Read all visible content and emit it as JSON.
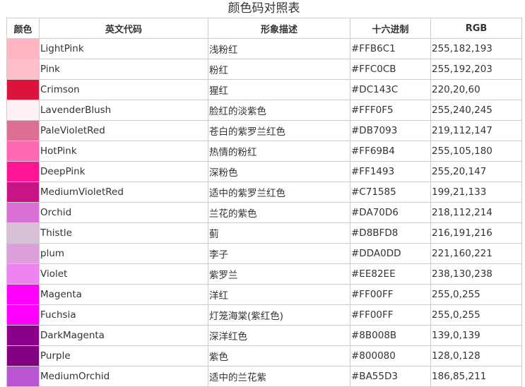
{
  "title": "颜色码对照表",
  "headers": [
    "颜色",
    "英文代码",
    "形象描述",
    "十六进制",
    "RGB"
  ],
  "rows": [
    {
      "name": "LightPink",
      "desc": "浅粉红",
      "hex": "#FFB6C1",
      "rgb": "255,182,193"
    },
    {
      "name": "Pink",
      "desc": "粉红",
      "hex": "#FFC0CB",
      "rgb": "255,192,203"
    },
    {
      "name": "Crimson",
      "desc": "猩红",
      "hex": "#DC143C",
      "rgb": "220,20,60"
    },
    {
      "name": "LavenderBlush",
      "desc": "脸红的淡紫色",
      "hex": "#FFF0F5",
      "rgb": "255,240,245"
    },
    {
      "name": "PaleVioletRed",
      "desc": "苍白的紫罗兰红色",
      "hex": "#DB7093",
      "rgb": "219,112,147"
    },
    {
      "name": "HotPink",
      "desc": "热情的粉红",
      "hex": "#FF69B4",
      "rgb": "255,105,180"
    },
    {
      "name": "DeepPink",
      "desc": "深粉色",
      "hex": "#FF1493",
      "rgb": "255,20,147"
    },
    {
      "name": "MediumVioletRed",
      "desc": "适中的紫罗兰红色",
      "hex": "#C71585",
      "rgb": "199,21,133"
    },
    {
      "name": "Orchid",
      "desc": "兰花的紫色",
      "hex": "#DA70D6",
      "rgb": "218,112,214"
    },
    {
      "name": "Thistle",
      "desc": "蓟",
      "hex": "#D8BFD8",
      "rgb": "216,191,216"
    },
    {
      "name": "plum",
      "desc": "李子",
      "hex": "#DDA0DD",
      "rgb": "221,160,221"
    },
    {
      "name": "Violet",
      "desc": "紫罗兰",
      "hex": "#EE82EE",
      "rgb": "238,130,238"
    },
    {
      "name": "Magenta",
      "desc": "洋红",
      "hex": "#FF00FF",
      "rgb": "255,0,255"
    },
    {
      "name": "Fuchsia",
      "desc": "灯笼海棠(紫红色)",
      "hex": "#FF00FF",
      "rgb": "255,0,255"
    },
    {
      "name": "DarkMagenta",
      "desc": "深洋红色",
      "hex": "#8B008B",
      "rgb": "139,0,139"
    },
    {
      "name": "Purple",
      "desc": "紫色",
      "hex": "#800080",
      "rgb": "128,0,128"
    },
    {
      "name": "MediumOrchid",
      "desc": "适中的兰花紫",
      "hex": "#BA55D3",
      "rgb": "186,85,211"
    }
  ]
}
